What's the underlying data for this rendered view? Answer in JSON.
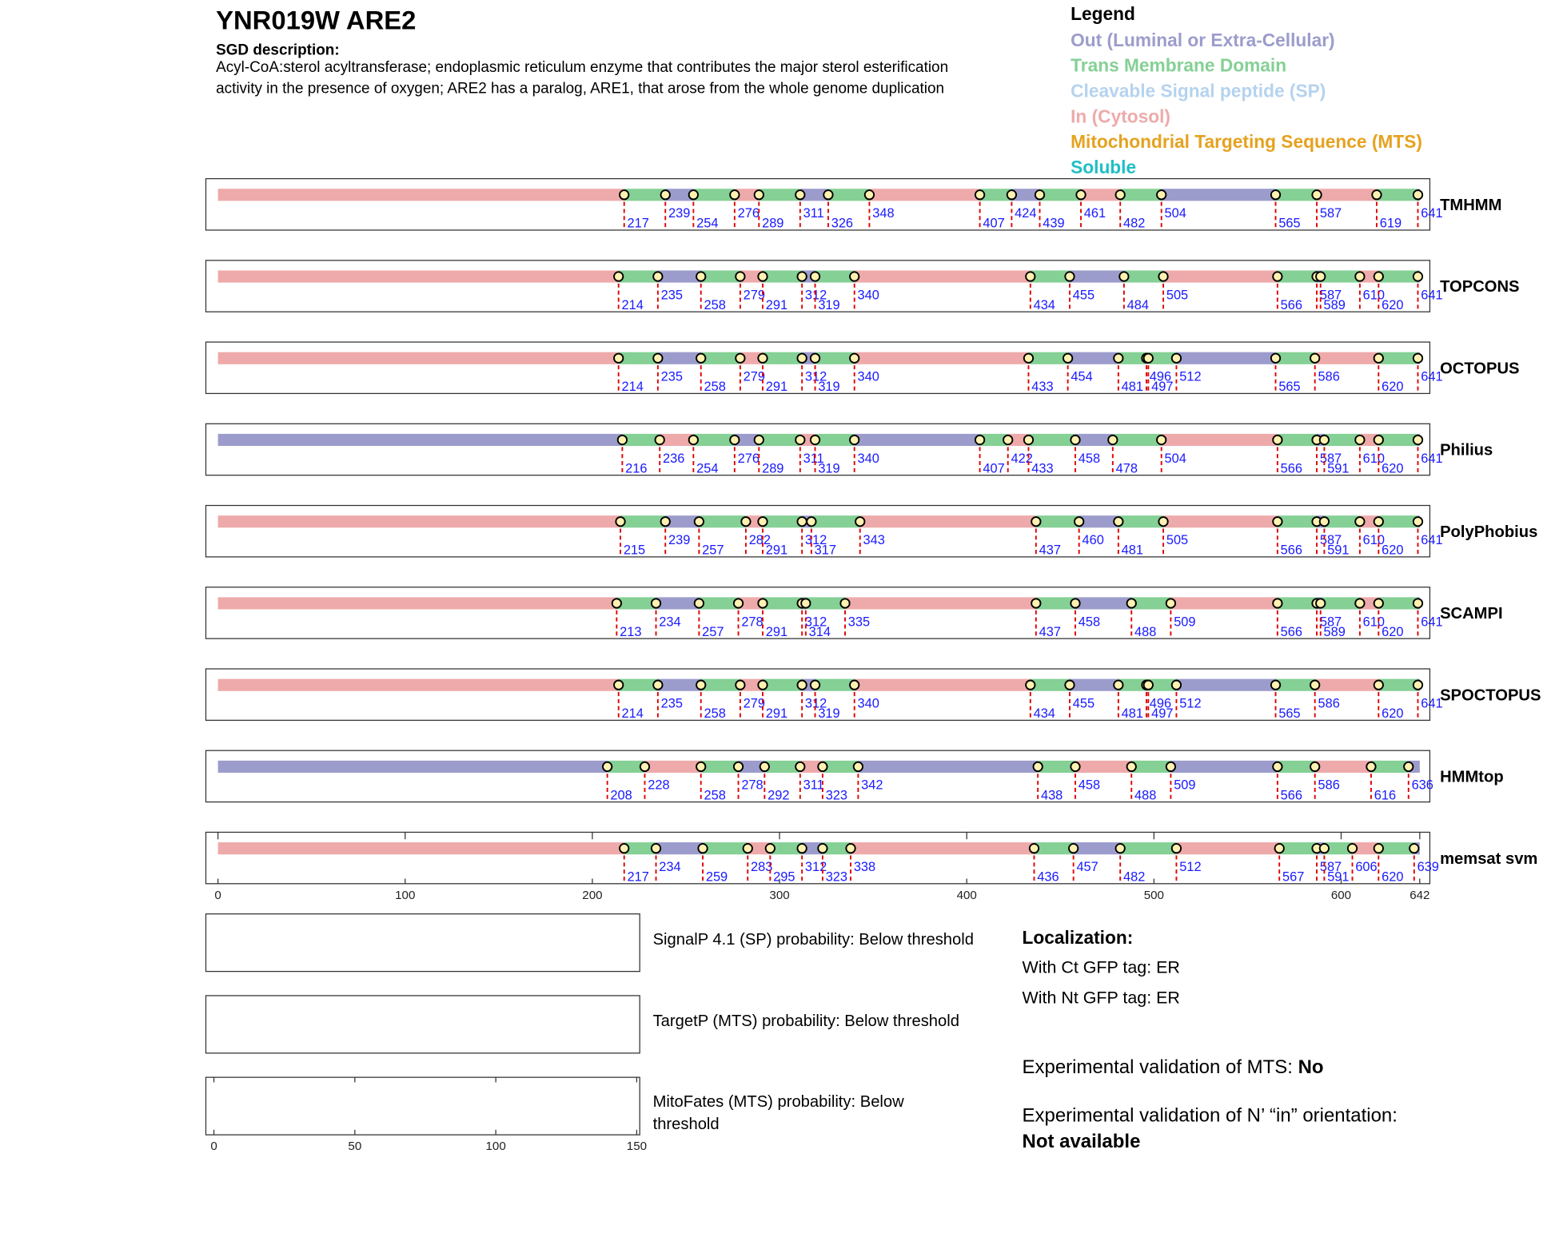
{
  "header": {
    "title": "YNR019W  ARE2",
    "description_label": "SGD description:",
    "description_lines": [
      "Acyl-CoA:sterol acyltransferase; endoplasmic reticulum enzyme that contributes the major sterol esterification",
      "activity in the presence of oxygen; ARE2 has a paralog, ARE1, that arose from the whole genome duplication"
    ]
  },
  "legend": {
    "title": "Legend",
    "items": [
      {
        "label": "Out (Luminal or Extra-Cellular)",
        "color": "#9c9ccc"
      },
      {
        "label": "Trans Membrane Domain",
        "color": "#85d095"
      },
      {
        "label": "Cleavable Signal peptide (SP)",
        "color": "#b5d3ee"
      },
      {
        "label": "In (Cytosol)",
        "color": "#eeaaaa"
      },
      {
        "label": "Mitochondrial Targeting Sequence (MTS)",
        "color": "#e5a21f"
      },
      {
        "label": "Soluble",
        "color": "#1fbfc5"
      }
    ]
  },
  "chart_data": {
    "type": "topology",
    "xlim": [
      0,
      642
    ],
    "xticks": [
      0,
      100,
      200,
      300,
      400,
      500,
      600,
      642
    ],
    "tracks": [
      {
        "name": "TMHMM",
        "boundaries": [
          217,
          239,
          254,
          276,
          289,
          311,
          326,
          348,
          407,
          424,
          439,
          461,
          482,
          504,
          565,
          587,
          619,
          641
        ],
        "segments": [
          3,
          1,
          0,
          1,
          3,
          1,
          0,
          1,
          3,
          1,
          0,
          1,
          3,
          1,
          0,
          1,
          3,
          1,
          0
        ]
      },
      {
        "name": "TOPCONS",
        "boundaries": [
          214,
          235,
          258,
          279,
          291,
          312,
          319,
          340,
          434,
          455,
          484,
          505,
          566,
          587,
          589,
          610,
          620,
          641
        ],
        "segments": [
          3,
          1,
          0,
          1,
          3,
          1,
          0,
          1,
          3,
          1,
          0,
          1,
          3,
          1,
          0,
          1,
          3,
          1,
          0
        ]
      },
      {
        "name": "OCTOPUS",
        "boundaries": [
          214,
          235,
          258,
          279,
          291,
          312,
          319,
          340,
          433,
          454,
          481,
          496,
          497,
          512,
          565,
          586,
          620,
          641
        ],
        "segments": [
          3,
          1,
          0,
          1,
          3,
          1,
          0,
          1,
          3,
          1,
          0,
          1,
          3,
          1,
          0,
          1,
          3,
          1,
          0
        ]
      },
      {
        "name": "Philius",
        "boundaries": [
          216,
          236,
          254,
          276,
          289,
          311,
          319,
          340,
          407,
          422,
          433,
          458,
          478,
          504,
          566,
          587,
          591,
          610,
          620,
          641
        ],
        "segments": [
          0,
          1,
          3,
          1,
          0,
          1,
          3,
          1,
          0,
          1,
          3,
          1,
          0,
          1,
          3,
          1,
          0,
          1,
          3,
          1,
          0
        ]
      },
      {
        "name": "PolyPhobius",
        "boundaries": [
          215,
          239,
          257,
          282,
          291,
          312,
          317,
          343,
          437,
          460,
          481,
          505,
          566,
          587,
          591,
          610,
          620,
          641
        ],
        "segments": [
          3,
          1,
          0,
          1,
          3,
          1,
          0,
          1,
          3,
          1,
          0,
          1,
          3,
          1,
          0,
          1,
          3,
          1,
          0
        ]
      },
      {
        "name": "SCAMPI",
        "boundaries": [
          213,
          234,
          257,
          278,
          291,
          312,
          314,
          335,
          437,
          458,
          488,
          509,
          566,
          587,
          589,
          610,
          620,
          641
        ],
        "segments": [
          3,
          1,
          0,
          1,
          3,
          1,
          0,
          1,
          3,
          1,
          0,
          1,
          3,
          1,
          0,
          1,
          3,
          1,
          0
        ]
      },
      {
        "name": "SPOCTOPUS",
        "boundaries": [
          214,
          235,
          258,
          279,
          291,
          312,
          319,
          340,
          434,
          455,
          481,
          496,
          497,
          512,
          565,
          586,
          620,
          641
        ],
        "segments": [
          3,
          1,
          0,
          1,
          3,
          1,
          0,
          1,
          3,
          1,
          0,
          1,
          3,
          1,
          0,
          1,
          3,
          1,
          0
        ]
      },
      {
        "name": "HMMtop",
        "boundaries": [
          208,
          228,
          258,
          278,
          292,
          311,
          323,
          342,
          438,
          458,
          488,
          509,
          566,
          586,
          616,
          636
        ],
        "segments": [
          0,
          1,
          3,
          1,
          0,
          1,
          3,
          1,
          0,
          1,
          3,
          1,
          0,
          1,
          3,
          1,
          0
        ]
      },
      {
        "name": "memsat svm",
        "boundaries": [
          217,
          234,
          259,
          283,
          295,
          312,
          323,
          338,
          436,
          457,
          482,
          512,
          567,
          587,
          591,
          606,
          620,
          639
        ],
        "segments": [
          3,
          1,
          0,
          1,
          3,
          1,
          0,
          1,
          3,
          1,
          0,
          1,
          3,
          1,
          0,
          1,
          3,
          1,
          0
        ]
      }
    ]
  },
  "panels": [
    {
      "label_lines": [
        "SignalP 4.1 (SP) probability: Below threshold"
      ]
    },
    {
      "label_lines": [
        "TargetP (MTS) probability: Below threshold"
      ]
    },
    {
      "label_lines": [
        "MitoFates (MTS) probability: Below",
        "threshold"
      ]
    }
  ],
  "panel_axis": {
    "xlim": [
      0,
      150
    ],
    "xticks": [
      0,
      50,
      100,
      150
    ]
  },
  "localization": {
    "title": "Localization:",
    "ct": "With Ct GFP tag: ER",
    "nt": "With Nt GFP tag: ER",
    "mts_label": "Experimental validation of MTS: ",
    "mts_value": "No",
    "orientation_label": "Experimental validation of N’ “in” orientation: ",
    "orientation_value": "Not available"
  }
}
